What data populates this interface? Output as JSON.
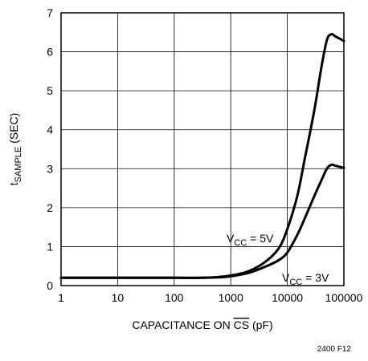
{
  "chart_data": {
    "type": "line",
    "xlabel": {
      "prefix": "CAPACITANCE ON ",
      "overlined": "CS",
      "suffix": " (pF)"
    },
    "ylabel": {
      "main": "t",
      "subscript": "SAMPLE",
      "suffix": " (SEC)"
    },
    "x_scale": "log",
    "xlim": [
      1,
      100000
    ],
    "ylim": [
      0,
      7
    ],
    "x_ticks": [
      {
        "value": 1,
        "label": "1"
      },
      {
        "value": 10,
        "label": "10"
      },
      {
        "value": 100,
        "label": "100"
      },
      {
        "value": 1000,
        "label": "1000"
      },
      {
        "value": 10000,
        "label": "10000"
      },
      {
        "value": 100000,
        "label": "100000"
      }
    ],
    "y_ticks": [
      {
        "value": 0,
        "label": "0"
      },
      {
        "value": 1,
        "label": "1"
      },
      {
        "value": 2,
        "label": "2"
      },
      {
        "value": 3,
        "label": "3"
      },
      {
        "value": 4,
        "label": "4"
      },
      {
        "value": 5,
        "label": "5"
      },
      {
        "value": 6,
        "label": "6"
      },
      {
        "value": 7,
        "label": "7"
      }
    ],
    "grid": true,
    "series": [
      {
        "name": "VCC = 5V",
        "label_main": "V",
        "label_sub": "CC",
        "label_rest": " = 5V",
        "x": [
          1,
          10,
          100,
          300,
          600,
          1000,
          2000,
          4000,
          7000,
          10000,
          15000,
          20000,
          30000,
          40000,
          50000,
          60000,
          70000,
          100000
        ],
        "y": [
          0.2,
          0.2,
          0.2,
          0.2,
          0.22,
          0.26,
          0.36,
          0.6,
          0.95,
          1.45,
          2.3,
          3.2,
          4.5,
          5.6,
          6.3,
          6.45,
          6.4,
          6.28
        ]
      },
      {
        "name": "VCC = 3V",
        "label_main": "V",
        "label_sub": "CC",
        "label_rest": " = 3V",
        "x": [
          1,
          10,
          100,
          300,
          600,
          1000,
          2000,
          4000,
          7000,
          10000,
          15000,
          20000,
          30000,
          40000,
          50000,
          60000,
          70000,
          100000
        ],
        "y": [
          0.2,
          0.2,
          0.2,
          0.2,
          0.21,
          0.24,
          0.32,
          0.48,
          0.65,
          0.85,
          1.3,
          1.7,
          2.3,
          2.7,
          3.0,
          3.1,
          3.08,
          3.02
        ]
      }
    ],
    "figure_note": "2400 F12"
  }
}
